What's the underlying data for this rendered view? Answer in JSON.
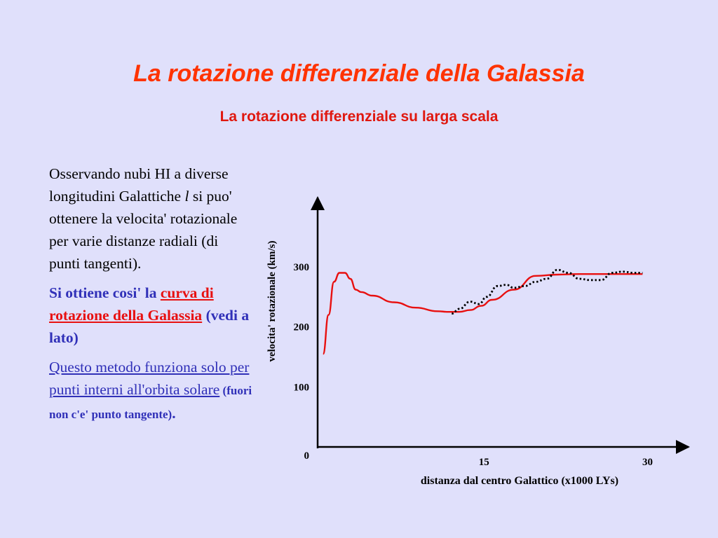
{
  "slide": {
    "title": "La rotazione differenziale della Galassia",
    "subtitle": "La rotazione differenziale su larga scala"
  },
  "text": {
    "p1_a": "Osservando nubi HI a diverse longitudini Galattiche ",
    "p1_italic": "l",
    "p1_b": " si puo' ottenere la velocita' rotazionale per varie distanze radiali (di punti tangenti).",
    "p2_a": "Si ottiene cosi' la ",
    "p2_red": "curva di rotazione della Galassia",
    "p2_b": " (vedi a lato)",
    "p3_link": "Questo metodo funziona solo per punti interni all'orbita solare",
    "p3_small": " (fuori non c'e' punto tangente)",
    "p3_end": "."
  },
  "chart_data": {
    "type": "line",
    "xlabel": "distanza dal centro Galattico (x1000 LYs)",
    "ylabel": "velocita' rotazionale (km/s)",
    "xticks": [
      15,
      30
    ],
    "yticks": [
      0,
      100,
      200,
      300
    ],
    "xlim": [
      0,
      33
    ],
    "ylim": [
      0,
      410
    ],
    "series": [
      {
        "style": "solid",
        "color": "#e81010",
        "x": [
          0.5,
          1.0,
          1.5,
          2.0,
          2.5,
          3.0,
          3.5,
          4.0,
          5.0,
          7.0,
          9.0,
          11.0,
          12.0,
          13.0,
          14.0,
          15.0,
          16.0,
          18.0,
          20.0,
          22.0,
          24.0,
          26.0,
          28.0,
          29.8
        ],
        "y": [
          155,
          220,
          275,
          290,
          290,
          280,
          262,
          258,
          252,
          241,
          232,
          226,
          225,
          225,
          228,
          235,
          245,
          262,
          285,
          287,
          288,
          288,
          288,
          288
        ]
      },
      {
        "style": "dotted",
        "color": "#000000",
        "x": [
          12.3,
          13.0,
          14.0,
          14.8,
          15.5,
          16.5,
          17.3,
          18.0,
          19.0,
          20.0,
          21.0,
          22.0,
          23.0,
          24.0,
          25.0,
          26.0,
          27.0,
          28.0,
          29.0,
          29.8
        ],
        "y": [
          222,
          230,
          242,
          238,
          250,
          268,
          270,
          265,
          268,
          275,
          280,
          295,
          290,
          280,
          278,
          278,
          290,
          292,
          290,
          290
        ]
      }
    ]
  }
}
